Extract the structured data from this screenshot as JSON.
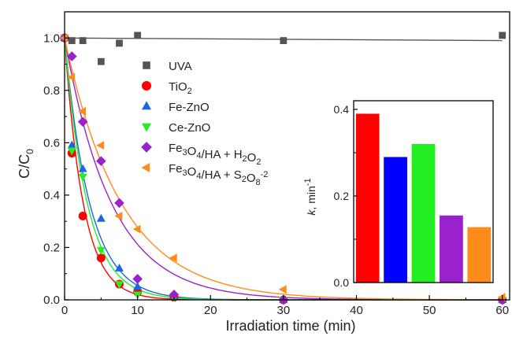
{
  "chart_data": [
    {
      "type": "scatter",
      "xlabel": "Irradiation time (min)",
      "ylabel_main": "C/C",
      "ylabel_sub": "0",
      "xlim": [
        0,
        61
      ],
      "ylim": [
        0,
        1.1
      ],
      "xticks": [
        0,
        10,
        20,
        30,
        40,
        50,
        60
      ],
      "yticks": [
        0.0,
        0.2,
        0.4,
        0.6,
        0.8,
        1.0
      ],
      "xtick_labels": [
        "0",
        "10",
        "20",
        "30",
        "40",
        "50",
        "60"
      ],
      "ytick_labels": [
        "0.0",
        "0.2",
        "0.4",
        "0.6",
        "0.8",
        "1.0"
      ],
      "series": [
        {
          "name_parts": [
            {
              "t": "UVA"
            }
          ],
          "marker": "square",
          "color": "#555555",
          "x": [
            0,
            1,
            2.5,
            5,
            7.5,
            10,
            30,
            60
          ],
          "y": [
            1.0,
            0.99,
            0.99,
            0.91,
            0.98,
            1.01,
            0.99,
            1.01
          ],
          "fit": "flat"
        },
        {
          "name_parts": [
            {
              "t": "TiO"
            },
            {
              "t": "2",
              "sub": true
            }
          ],
          "marker": "circle",
          "color": "#ff0000",
          "x": [
            0,
            1,
            2.5,
            5,
            7.5,
            10,
            15,
            30,
            60
          ],
          "y": [
            1.0,
            0.56,
            0.32,
            0.16,
            0.06,
            0.03,
            0.01,
            0.0,
            0.0
          ],
          "fit": "exp",
          "k": 0.39
        },
        {
          "name_parts": [
            {
              "t": "Fe-ZnO"
            }
          ],
          "marker": "triangle-up",
          "color": "#1a66e6",
          "x": [
            0,
            1,
            2.5,
            5,
            7.5,
            10,
            15,
            30,
            60
          ],
          "y": [
            1.0,
            0.59,
            0.5,
            0.31,
            0.12,
            0.05,
            0.01,
            0.0,
            0.0
          ],
          "fit": "exp",
          "k": 0.29
        },
        {
          "name_parts": [
            {
              "t": "Ce-ZnO"
            }
          ],
          "marker": "triangle-down",
          "color": "#22ee22",
          "x": [
            0,
            1,
            2.5,
            5,
            7.5,
            10,
            15,
            30,
            60
          ],
          "y": [
            1.0,
            0.57,
            0.47,
            0.19,
            0.06,
            0.02,
            0.01,
            0.0,
            0.0
          ],
          "fit": "exp",
          "k": 0.32
        },
        {
          "name_parts": [
            {
              "t": "Fe"
            },
            {
              "t": "3",
              "sub": true
            },
            {
              "t": "O"
            },
            {
              "t": "4",
              "sub": true
            },
            {
              "t": "/HA + H"
            },
            {
              "t": "2",
              "sub": true
            },
            {
              "t": "O"
            },
            {
              "t": "2",
              "sub": true
            }
          ],
          "marker": "diamond",
          "color": "#9922cc",
          "x": [
            0,
            1,
            2.5,
            5,
            7.5,
            10,
            15,
            30,
            60
          ],
          "y": [
            1.0,
            0.93,
            0.68,
            0.53,
            0.37,
            0.08,
            0.02,
            0.0,
            0.0
          ],
          "fit": "exp",
          "k": 0.155
        },
        {
          "name_parts": [
            {
              "t": "Fe"
            },
            {
              "t": "3",
              "sub": true
            },
            {
              "t": "O"
            },
            {
              "t": "4",
              "sub": true
            },
            {
              "t": "/HA + S"
            },
            {
              "t": "2",
              "sub": true
            },
            {
              "t": "O"
            },
            {
              "t": "8",
              "sub": true
            },
            {
              "t": "-2",
              "sup": true
            }
          ],
          "marker": "triangle-left",
          "color": "#ff8c1a",
          "x": [
            0,
            1,
            2.5,
            5,
            7.5,
            10,
            15,
            30,
            60
          ],
          "y": [
            1.0,
            0.85,
            0.72,
            0.59,
            0.32,
            0.27,
            0.16,
            0.04,
            0.01
          ],
          "fit": "exp",
          "k": 0.128
        }
      ]
    },
    {
      "type": "bar",
      "ylabel_main": "k",
      "ylabel_rest": ", min",
      "ylabel_sup": "-1",
      "ylim": [
        0,
        0.42
      ],
      "yticks": [
        0.0,
        0.2,
        0.4
      ],
      "ytick_labels": [
        "0.0",
        "0.2",
        "0.4"
      ],
      "values": [
        0.39,
        0.29,
        0.32,
        0.155,
        0.128
      ],
      "colors": [
        "#ff0000",
        "#0000ff",
        "#22ee22",
        "#9922cc",
        "#ff8c1a"
      ]
    }
  ]
}
